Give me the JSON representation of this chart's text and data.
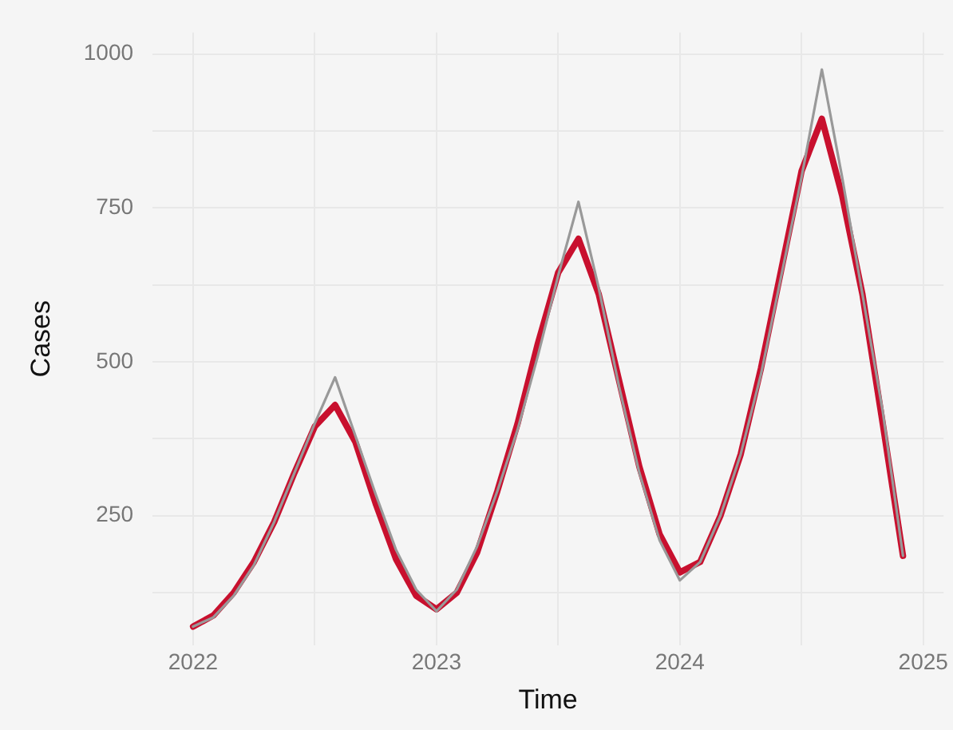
{
  "chart_data": {
    "type": "line",
    "xlabel": "Time",
    "ylabel": "Cases",
    "x": [
      "2022-01",
      "2022-02",
      "2022-03",
      "2022-04",
      "2022-05",
      "2022-06",
      "2022-07",
      "2022-08",
      "2022-09",
      "2022-10",
      "2022-11",
      "2022-12",
      "2023-01",
      "2023-02",
      "2023-03",
      "2023-04",
      "2023-05",
      "2023-06",
      "2023-07",
      "2023-08",
      "2023-09",
      "2023-10",
      "2023-11",
      "2023-12",
      "2024-01",
      "2024-02",
      "2024-03",
      "2024-04",
      "2024-05",
      "2024-06",
      "2024-07",
      "2024-08",
      "2024-09",
      "2024-10",
      "2024-11",
      "2024-12"
    ],
    "series": [
      {
        "color": "#999999",
        "values": [
          70,
          85,
          120,
          170,
          240,
          320,
          400,
          475,
          380,
          285,
          195,
          130,
          95,
          130,
          200,
          290,
          390,
          510,
          640,
          760,
          620,
          460,
          320,
          210,
          145,
          175,
          250,
          350,
          480,
          640,
          800,
          975,
          800,
          610,
          420,
          185
        ]
      },
      {
        "color": "#c8102e",
        "values": [
          70,
          88,
          125,
          175,
          240,
          320,
          395,
          430,
          370,
          270,
          180,
          120,
          98,
          125,
          190,
          290,
          400,
          530,
          645,
          700,
          610,
          470,
          330,
          220,
          158,
          175,
          250,
          350,
          490,
          650,
          810,
          895,
          770,
          610,
          400,
          185
        ]
      }
    ],
    "xlim": [
      "2021-11",
      "2025-02"
    ],
    "xticks": [
      {
        "value": "2022",
        "label": "2022"
      },
      {
        "value": "2022-07",
        "label": null
      },
      {
        "value": "2023",
        "label": "2023"
      },
      {
        "value": "2023-07",
        "label": null
      },
      {
        "value": "2024",
        "label": "2024"
      },
      {
        "value": "2024-07",
        "label": null
      },
      {
        "value": "2025",
        "label": "2025"
      }
    ],
    "ylim": [
      40,
      1035
    ],
    "yticks": [
      {
        "value": 125,
        "label": null
      },
      250,
      {
        "value": 375,
        "label": null
      },
      500,
      {
        "value": 625,
        "label": null
      },
      750,
      {
        "value": 875,
        "label": null
      },
      1000
    ],
    "grid": true,
    "legend": false,
    "marker": "none",
    "line_style": "solid"
  }
}
